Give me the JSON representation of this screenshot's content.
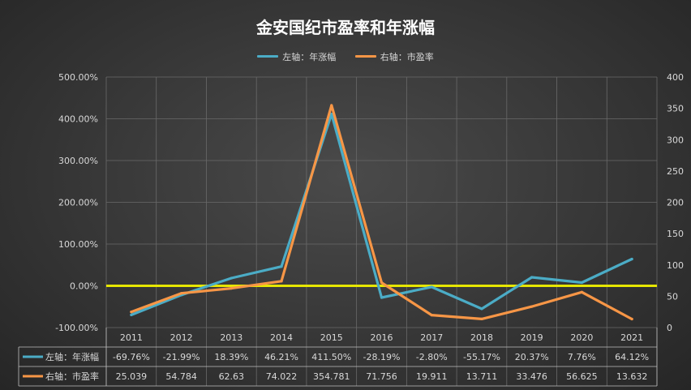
{
  "title": "金安国纪市盈率和年涨幅",
  "colors": {
    "series_left": "#4bacc6",
    "series_right": "#f79646",
    "zero_line": "#e6e600",
    "grid": "#6a6a6a",
    "text": "#d9d9d9"
  },
  "chart_data": {
    "type": "line",
    "title": "金安国纪市盈率和年涨幅",
    "categories": [
      "2011",
      "2012",
      "2013",
      "2014",
      "2015",
      "2016",
      "2017",
      "2018",
      "2019",
      "2020",
      "2021"
    ],
    "legend_position": "top",
    "grid": true,
    "y_left": {
      "range": [
        -100,
        500
      ],
      "ticks": [
        "-100.00%",
        "0.00%",
        "100.00%",
        "200.00%",
        "300.00%",
        "400.00%",
        "500.00%"
      ]
    },
    "y_right": {
      "range": [
        0,
        400
      ],
      "ticks": [
        "0",
        "50",
        "100",
        "150",
        "200",
        "250",
        "300",
        "350",
        "400"
      ]
    },
    "series": [
      {
        "name": "左轴：年涨幅",
        "axis": "left",
        "values": [
          -69.76,
          -21.99,
          18.39,
          46.21,
          411.5,
          -28.19,
          -2.8,
          -55.17,
          20.37,
          7.76,
          64.12
        ],
        "labels": [
          "-69.76%",
          "-21.99%",
          "18.39%",
          "46.21%",
          "411.50%",
          "-28.19%",
          "-2.80%",
          "-55.17%",
          "20.37%",
          "7.76%",
          "64.12%"
        ]
      },
      {
        "name": "右轴：市盈率",
        "axis": "right",
        "values": [
          25.039,
          54.784,
          62.63,
          74.022,
          354.781,
          71.756,
          19.911,
          13.711,
          33.476,
          56.625,
          13.632
        ],
        "labels": [
          "25.039",
          "54.784",
          "62.63",
          "74.022",
          "354.781",
          "71.756",
          "19.911",
          "13.711",
          "33.476",
          "56.625",
          "13.632"
        ]
      }
    ]
  }
}
